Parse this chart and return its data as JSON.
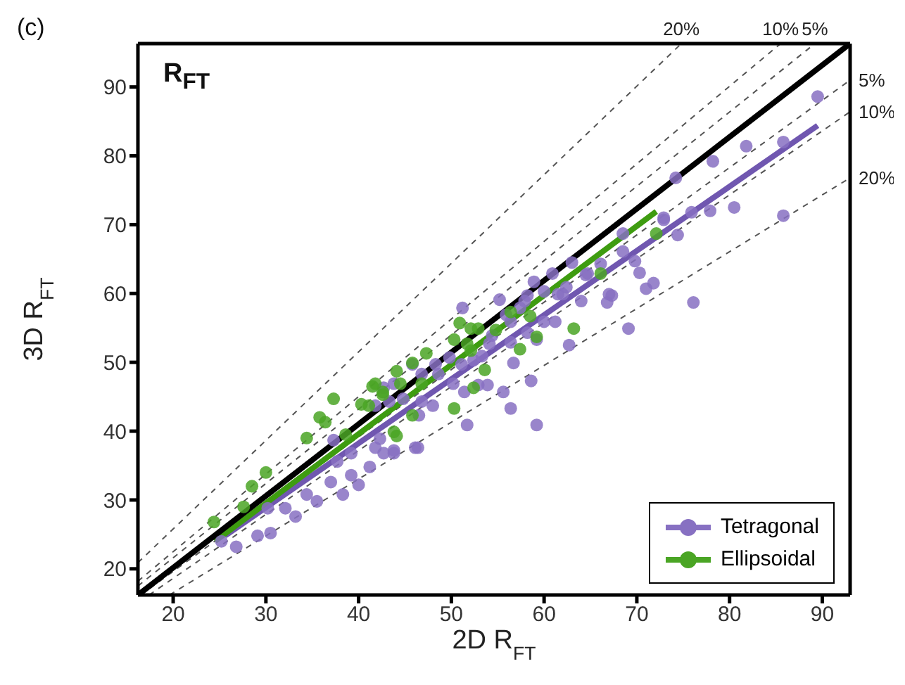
{
  "chart_data": {
    "type": "scatter",
    "xlabel": "2D R$_{FT}$",
    "ylabel": "3D R$_{FT}$",
    "annotations": [
      "(c)",
      "R$_{FT}$",
      {
        "text": "20%",
        "x": 74.8,
        "y": 96.3
      },
      {
        "text": "10%",
        "x": 85.5,
        "y": 96.3
      },
      {
        "text": "5%",
        "x": 89.2,
        "y": 96.3
      },
      {
        "text": "5%",
        "x": 93,
        "y": 91.0
      },
      {
        "text": "10%",
        "x": 93,
        "y": 86.4
      },
      {
        "text": "20%",
        "x": 93,
        "y": 76.8
      }
    ],
    "xlim": [
      16.2,
      93
    ],
    "ylim": [
      16.2,
      96.3
    ],
    "xticks": [
      20,
      30,
      40,
      50,
      60,
      70,
      80,
      90
    ],
    "yticks": [
      20,
      30,
      40,
      50,
      60,
      70,
      80,
      90
    ],
    "legend": "bottom right",
    "series": [
      {
        "type": "line",
        "line_style": "dashed",
        "marker": "none",
        "color": "#555555",
        "x": [
          16.2,
          74.8
        ],
        "values": [
          20.9,
          96.3
        ]
      },
      {
        "type": "line",
        "line_style": "dashed",
        "marker": "none",
        "color": "#555555",
        "x": [
          16.2,
          85.5
        ],
        "values": [
          18.2,
          96.3
        ]
      },
      {
        "type": "line",
        "line_style": "dashed",
        "marker": "none",
        "color": "#555555",
        "x": [
          16.2,
          89.2
        ],
        "values": [
          17.5,
          96.3
        ]
      },
      {
        "type": "line",
        "line_style": "dashed",
        "marker": "none",
        "color": "#555555",
        "x": [
          16.5,
          93
        ],
        "values": [
          16.2,
          91.0
        ]
      },
      {
        "type": "line",
        "line_style": "dashed",
        "marker": "none",
        "color": "#555555",
        "x": [
          17.4,
          93
        ],
        "values": [
          16.2,
          86.4
        ]
      },
      {
        "type": "line",
        "line_style": "dashed",
        "marker": "none",
        "color": "#555555",
        "x": [
          19.6,
          93
        ],
        "values": [
          16.2,
          76.8
        ]
      },
      {
        "name": "Tetragonal",
        "marker": "circle",
        "color": "#8770c2",
        "x": [
          26.8,
          29.1,
          30.5,
          33.2,
          32.1,
          30.2,
          35.5,
          34.4,
          38.3,
          37,
          40,
          39.2,
          41.2,
          37.7,
          39.2,
          42.7,
          43.8,
          41.8,
          46.1,
          37.3,
          42.3,
          43.8,
          46.4,
          51.7,
          59.2,
          46.5,
          41.8,
          48,
          43.3,
          46.8,
          44.8,
          56.4,
          55.6,
          51.4,
          42.7,
          43.8,
          50.2,
          52.9,
          53.9,
          58.6,
          46.8,
          48.6,
          45.8,
          48.3,
          51.1,
          56.7,
          49.8,
          52.4,
          53.3,
          54.1,
          56.4,
          54.4,
          62.7,
          59.2,
          58.2,
          69.1,
          56.4,
          60,
          61.2,
          55.9,
          57.4,
          76.1,
          66.8,
          57.9,
          55.2,
          64,
          58.2,
          67.3,
          61.5,
          62,
          67,
          60,
          71,
          62.4,
          71.8,
          58.9,
          70.3,
          64.7,
          60.9,
          64.5,
          66.1,
          63,
          69.8,
          68.5,
          74.4,
          68.5,
          72.9,
          72.9,
          75.9,
          77.9,
          80.5,
          85.8,
          74.2,
          78.2,
          81.8,
          85.8,
          89.5,
          25.2,
          51.2
        ],
        "values": [
          23.2,
          24.8,
          25.2,
          27.6,
          28.8,
          28.8,
          29.8,
          30.8,
          30.8,
          32.6,
          32.2,
          33.6,
          34.8,
          35.6,
          36.8,
          36.8,
          36.8,
          37.6,
          37.6,
          38.7,
          38.9,
          37.2,
          37.6,
          40.9,
          40.9,
          42.3,
          43.7,
          43.7,
          44.3,
          44.3,
          44.7,
          43.3,
          45.7,
          45.7,
          46.3,
          46.9,
          46.9,
          46.7,
          46.7,
          47.3,
          48.3,
          48.3,
          49.7,
          49.7,
          49.7,
          49.9,
          50.7,
          50.3,
          50.9,
          52.7,
          52.9,
          53.9,
          52.5,
          53.3,
          54.3,
          54.9,
          55.9,
          55.9,
          55.9,
          56.9,
          57.9,
          58.7,
          58.7,
          58.9,
          59.1,
          58.9,
          59.7,
          59.7,
          59.9,
          59.9,
          59.9,
          60.3,
          60.7,
          60.9,
          61.5,
          61.7,
          63,
          62.9,
          62.9,
          62.7,
          64.3,
          64.5,
          64.7,
          66.1,
          68.5,
          68.7,
          70.7,
          71,
          71.8,
          72,
          72.5,
          71.3,
          76.8,
          79.2,
          81.4,
          82,
          88.6,
          24,
          57.9
        ]
      },
      {
        "name": "Ellipsoidal",
        "marker": "circle",
        "color": "#4aa524",
        "x": [
          24.4,
          27.6,
          28.5,
          30,
          34.4,
          35.8,
          36.4,
          37.3,
          40.3,
          38.6,
          41.5,
          42.6,
          44.1,
          43.8,
          45.8,
          41.1,
          50.3,
          42.6,
          41.8,
          44.5,
          46.8,
          52.4,
          44.1,
          53.6,
          45.8,
          47.3,
          52.1,
          57.4,
          51.7,
          50.3,
          59.2,
          54.8,
          52.1,
          52.9,
          63.2,
          50.9,
          58.5,
          56.4,
          66.1,
          72.1
        ],
        "values": [
          26.8,
          29,
          32,
          34,
          39,
          42,
          41.3,
          44.7,
          43.9,
          39.5,
          46.5,
          45.3,
          39.3,
          39.9,
          42.3,
          43.7,
          43.3,
          45.7,
          46.9,
          46.9,
          46.9,
          46.3,
          48.7,
          48.9,
          49.9,
          51.3,
          51.7,
          51.9,
          52.7,
          53.3,
          53.7,
          54.7,
          54.9,
          54.9,
          54.9,
          55.7,
          56.7,
          57.3,
          62.9,
          68.7
        ]
      },
      {
        "type": "line",
        "line_style": "solid",
        "marker": "none",
        "color": "#7057b0",
        "x": [
          25.6,
          89.5
        ],
        "values": [
          24.8,
          84.4
        ]
      },
      {
        "type": "line",
        "line_style": "solid",
        "marker": "none",
        "color": "#3e9c10",
        "x": [
          24.5,
          72.1
        ],
        "values": [
          24,
          71.9
        ]
      },
      {
        "type": "line",
        "line_style": "solid",
        "marker": "none",
        "color": "#000000",
        "x": [
          16.2,
          93
        ],
        "values": [
          16.2,
          96.3
        ]
      }
    ]
  }
}
